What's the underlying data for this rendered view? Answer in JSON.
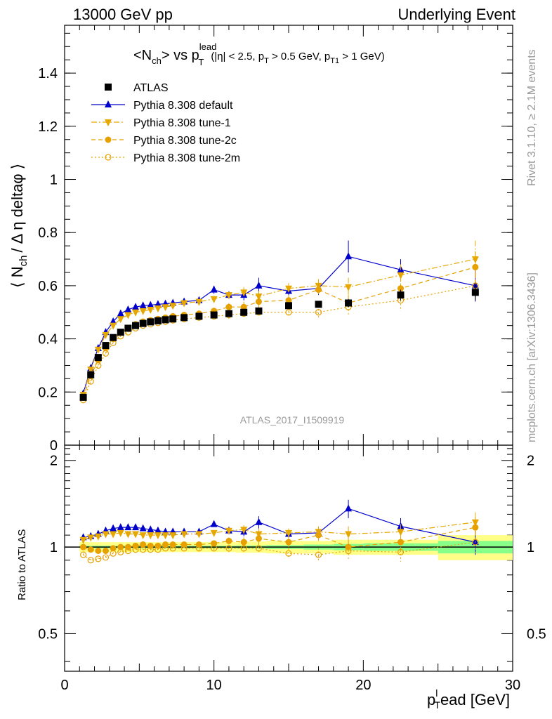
{
  "header": {
    "left": "13000 GeV pp",
    "right": "Underlying Event"
  },
  "side_labels": {
    "rivet": "Rivet 3.1.10, ≥ 2.1M events",
    "mcplots": "mcplots.cern.ch [arXiv:1306.3436]"
  },
  "chart_data": [
    {
      "type": "scatter",
      "title_parts": {
        "main": "<N",
        "main_sub": "ch",
        "vs": "> vs p",
        "vs_sup": "lead",
        "vs_sub": "T",
        "cut1": "(|η| < 2.5, p",
        "cut1_sub": "T",
        "cut2": " > 0.5 GeV, p",
        "cut2_sub": "T1",
        "cut3": " > 1 GeV)"
      },
      "ylabel_parts": {
        "a": "⟨ N",
        "a_sub": "ch",
        "b": "/ Δ η deltaφ ⟩"
      },
      "xlabel_parts": {
        "a": "p",
        "a_sub": "T",
        "a_sup": "l",
        "b": "ead [GeV]"
      },
      "watermark": "ATLAS_2017_I1509919",
      "xlim": [
        0,
        30
      ],
      "ylim": [
        0,
        1.58
      ],
      "yticks": [
        0,
        0.2,
        0.4,
        0.6,
        0.8,
        1,
        1.2,
        1.4
      ],
      "ytick_labels": [
        "0",
        "0.2",
        "0.4",
        "0.6",
        "0.8",
        "1",
        "1.2",
        "1.4"
      ],
      "xticks": [
        0,
        10,
        20,
        30
      ],
      "xtick_labels": [
        "0",
        "10",
        "20",
        "30"
      ],
      "legend_position": "top-left",
      "x": [
        1.25,
        1.75,
        2.25,
        2.75,
        3.25,
        3.75,
        4.25,
        4.75,
        5.25,
        5.75,
        6.25,
        6.75,
        7.25,
        8.0,
        9.0,
        10.0,
        11.0,
        12.0,
        13.0,
        15.0,
        17.0,
        19.0,
        22.5,
        27.5
      ],
      "x_err": [
        0.25,
        0.25,
        0.25,
        0.25,
        0.25,
        0.25,
        0.25,
        0.25,
        0.25,
        0.25,
        0.25,
        0.25,
        0.25,
        0.5,
        0.5,
        0.5,
        0.5,
        0.5,
        0.5,
        1.0,
        1.0,
        1.0,
        2.5,
        2.5
      ],
      "series": [
        {
          "name": "ATLAS",
          "color": "#000000",
          "marker": "square",
          "line": "none",
          "values": [
            0.18,
            0.265,
            0.33,
            0.375,
            0.405,
            0.425,
            0.44,
            0.45,
            0.458,
            0.464,
            0.468,
            0.472,
            0.475,
            0.48,
            0.485,
            0.49,
            0.495,
            0.5,
            0.505,
            0.525,
            0.53,
            0.535,
            0.565,
            0.575
          ],
          "errors": [
            0.01,
            0.01,
            0.01,
            0.01,
            0.01,
            0.01,
            0.01,
            0.01,
            0.01,
            0.01,
            0.01,
            0.01,
            0.01,
            0.01,
            0.01,
            0.01,
            0.01,
            0.01,
            0.01,
            0.01,
            0.012,
            0.015,
            0.02,
            0.03
          ]
        },
        {
          "name": "Pythia 8.308 default",
          "color": "#0000cc",
          "marker": "triangle-up",
          "line": "solid",
          "values": [
            0.195,
            0.29,
            0.365,
            0.425,
            0.465,
            0.495,
            0.51,
            0.52,
            0.525,
            0.527,
            0.53,
            0.532,
            0.535,
            0.54,
            0.545,
            0.585,
            0.565,
            0.565,
            0.6,
            0.58,
            0.59,
            0.71,
            0.66,
            0.6
          ],
          "errors": [
            0.005,
            0.005,
            0.005,
            0.005,
            0.005,
            0.005,
            0.005,
            0.005,
            0.005,
            0.005,
            0.005,
            0.005,
            0.005,
            0.008,
            0.01,
            0.015,
            0.015,
            0.02,
            0.03,
            0.02,
            0.025,
            0.06,
            0.04,
            0.06
          ]
        },
        {
          "name": "Pythia 8.308 tune-1",
          "color": "#e6a800",
          "marker": "triangle-down",
          "line": "dashdot",
          "values": [
            0.19,
            0.285,
            0.36,
            0.415,
            0.45,
            0.475,
            0.49,
            0.5,
            0.505,
            0.51,
            0.515,
            0.52,
            0.525,
            0.535,
            0.54,
            0.55,
            0.565,
            0.575,
            0.56,
            0.59,
            0.6,
            0.595,
            0.64,
            0.7
          ],
          "errors": [
            0.005,
            0.005,
            0.005,
            0.005,
            0.005,
            0.005,
            0.005,
            0.005,
            0.005,
            0.005,
            0.005,
            0.005,
            0.005,
            0.008,
            0.01,
            0.012,
            0.015,
            0.02,
            0.02,
            0.02,
            0.025,
            0.035,
            0.04,
            0.07
          ]
        },
        {
          "name": "Pythia 8.308 tune-2c",
          "color": "#e6a000",
          "marker": "circle",
          "line": "dashed",
          "values": [
            0.18,
            0.26,
            0.32,
            0.365,
            0.4,
            0.425,
            0.44,
            0.455,
            0.465,
            0.47,
            0.475,
            0.48,
            0.485,
            0.49,
            0.495,
            0.505,
            0.52,
            0.52,
            0.54,
            0.545,
            0.585,
            0.535,
            0.59,
            0.67
          ],
          "errors": [
            0.005,
            0.005,
            0.005,
            0.005,
            0.005,
            0.005,
            0.005,
            0.005,
            0.005,
            0.005,
            0.005,
            0.005,
            0.005,
            0.008,
            0.01,
            0.012,
            0.015,
            0.02,
            0.02,
            0.02,
            0.025,
            0.03,
            0.04,
            0.06
          ]
        },
        {
          "name": "Pythia 8.308 tune-2m",
          "color": "#e6a000",
          "marker": "circle-open",
          "line": "dotted",
          "values": [
            0.17,
            0.24,
            0.3,
            0.345,
            0.385,
            0.41,
            0.425,
            0.44,
            0.45,
            0.455,
            0.46,
            0.465,
            0.47,
            0.475,
            0.48,
            0.485,
            0.49,
            0.495,
            0.5,
            0.5,
            0.5,
            0.52,
            0.545,
            0.6
          ],
          "errors": [
            0.005,
            0.005,
            0.005,
            0.005,
            0.005,
            0.005,
            0.005,
            0.005,
            0.005,
            0.005,
            0.005,
            0.005,
            0.005,
            0.008,
            0.01,
            0.012,
            0.015,
            0.02,
            0.02,
            0.02,
            0.025,
            0.03,
            0.04,
            0.06
          ]
        }
      ]
    },
    {
      "type": "scatter",
      "ylabel": "Ratio to ATLAS",
      "xlim": [
        0,
        30
      ],
      "ylim": [
        0.37,
        2.26
      ],
      "ylog": true,
      "yticks": [
        0.5,
        1,
        2
      ],
      "ytick_labels": [
        "0.5",
        "1",
        "2"
      ],
      "reference_line": 1,
      "bands": {
        "inner_color": "#88ff88",
        "outer_color": "#ffff88",
        "x_edges": [
          1.0,
          1.5,
          2.0,
          2.5,
          3.0,
          3.5,
          4.0,
          4.5,
          5.0,
          5.5,
          6.0,
          6.5,
          7.0,
          7.5,
          8.5,
          9.5,
          10.5,
          11.5,
          12.5,
          13.5,
          16.0,
          18.0,
          20.0,
          25.0,
          30.0
        ],
        "inner_half": [
          0.01,
          0.01,
          0.01,
          0.01,
          0.01,
          0.01,
          0.01,
          0.01,
          0.01,
          0.01,
          0.01,
          0.01,
          0.01,
          0.01,
          0.01,
          0.01,
          0.01,
          0.012,
          0.012,
          0.015,
          0.02,
          0.025,
          0.03,
          0.05
        ],
        "outer_half": [
          0.04,
          0.04,
          0.04,
          0.04,
          0.04,
          0.04,
          0.04,
          0.04,
          0.04,
          0.04,
          0.04,
          0.04,
          0.04,
          0.04,
          0.04,
          0.04,
          0.04,
          0.045,
          0.045,
          0.05,
          0.05,
          0.06,
          0.06,
          0.1
        ]
      },
      "series": [
        {
          "name": "Pythia 8.308 default",
          "color": "#0000cc",
          "marker": "triangle-up",
          "line": "solid",
          "values": [
            1.08,
            1.09,
            1.11,
            1.14,
            1.16,
            1.17,
            1.17,
            1.17,
            1.16,
            1.15,
            1.14,
            1.13,
            1.13,
            1.13,
            1.13,
            1.2,
            1.14,
            1.13,
            1.22,
            1.11,
            1.12,
            1.36,
            1.18,
            1.04
          ],
          "errors": [
            0.01,
            0.01,
            0.01,
            0.01,
            0.01,
            0.01,
            0.01,
            0.01,
            0.01,
            0.01,
            0.01,
            0.01,
            0.01,
            0.015,
            0.02,
            0.025,
            0.03,
            0.04,
            0.06,
            0.04,
            0.05,
            0.1,
            0.08,
            0.1
          ]
        },
        {
          "name": "Pythia 8.308 tune-1",
          "color": "#e6a800",
          "marker": "triangle-down",
          "line": "dashdot",
          "values": [
            1.06,
            1.08,
            1.09,
            1.11,
            1.11,
            1.12,
            1.11,
            1.11,
            1.1,
            1.1,
            1.1,
            1.1,
            1.1,
            1.11,
            1.11,
            1.12,
            1.14,
            1.15,
            1.11,
            1.12,
            1.13,
            1.11,
            1.13,
            1.22
          ],
          "errors": [
            0.01,
            0.01,
            0.01,
            0.01,
            0.01,
            0.01,
            0.01,
            0.01,
            0.01,
            0.01,
            0.01,
            0.01,
            0.01,
            0.015,
            0.02,
            0.025,
            0.03,
            0.04,
            0.05,
            0.04,
            0.05,
            0.07,
            0.07,
            0.1
          ]
        },
        {
          "name": "Pythia 8.308 tune-2c",
          "color": "#e6a000",
          "marker": "circle",
          "line": "dashed",
          "values": [
            1.0,
            0.98,
            0.97,
            0.97,
            0.99,
            1.0,
            1.0,
            1.01,
            1.02,
            1.01,
            1.01,
            1.02,
            1.02,
            1.02,
            1.02,
            1.03,
            1.05,
            1.04,
            1.07,
            1.04,
            1.1,
            1.0,
            1.04,
            1.17
          ],
          "errors": [
            0.01,
            0.01,
            0.01,
            0.01,
            0.01,
            0.01,
            0.01,
            0.01,
            0.01,
            0.01,
            0.01,
            0.01,
            0.01,
            0.015,
            0.02,
            0.025,
            0.03,
            0.04,
            0.04,
            0.04,
            0.05,
            0.06,
            0.07,
            0.1
          ]
        },
        {
          "name": "Pythia 8.308 tune-2m",
          "color": "#e6a000",
          "marker": "circle-open",
          "line": "dotted",
          "values": [
            0.94,
            0.9,
            0.91,
            0.92,
            0.95,
            0.96,
            0.97,
            0.98,
            0.98,
            0.98,
            0.98,
            0.99,
            0.99,
            0.99,
            0.99,
            0.99,
            0.99,
            0.99,
            0.99,
            0.95,
            0.94,
            0.97,
            0.96,
            1.04
          ],
          "errors": [
            0.01,
            0.01,
            0.01,
            0.01,
            0.01,
            0.01,
            0.01,
            0.01,
            0.01,
            0.01,
            0.01,
            0.01,
            0.01,
            0.015,
            0.02,
            0.025,
            0.03,
            0.04,
            0.04,
            0.04,
            0.05,
            0.06,
            0.07,
            0.1
          ]
        }
      ]
    }
  ]
}
